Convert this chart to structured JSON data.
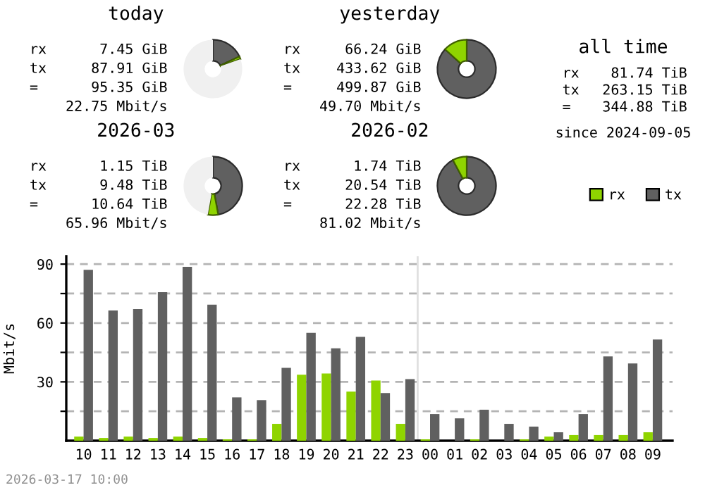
{
  "chart_data": [
    {
      "type": "donut",
      "title": "today",
      "categories": [
        null,
        null,
        null
      ],
      "values": [
        18.0,
        1.5,
        80.5
      ],
      "colors": [
        "#606060",
        "#8fd400",
        "#f0f0f0"
      ],
      "annotations": [
        "rx 7.45 GiB",
        "tx 87.91 GiB",
        "= 95.35 GiB",
        "22.75 Mbit/s"
      ]
    },
    {
      "type": "donut",
      "title": "yesterday",
      "categories": [
        null,
        null
      ],
      "values": [
        86.75,
        13.25
      ],
      "colors": [
        "#606060",
        "#8fd400"
      ],
      "annotations": [
        "rx 66.24 GiB",
        "tx 433.62 GiB",
        "= 499.87 GiB",
        "49.70 Mbit/s"
      ]
    },
    {
      "type": "other",
      "title": "all time",
      "annotations": [
        "rx 81.74 TiB",
        "tx 263.15 TiB",
        "= 344.88 TiB",
        "since 2024-09-05"
      ]
    },
    {
      "type": "donut",
      "title": "2026-03",
      "categories": [
        null,
        null,
        null
      ],
      "values": [
        47.1,
        5.7,
        47.2
      ],
      "colors": [
        "#606060",
        "#8fd400",
        "#f0f0f0"
      ],
      "annotations": [
        "rx 1.15 TiB",
        "tx 9.48 TiB",
        "= 10.64 TiB",
        "65.96 Mbit/s"
      ]
    },
    {
      "type": "donut",
      "title": "2026-02",
      "categories": [
        null,
        null
      ],
      "values": [
        92.19,
        7.81
      ],
      "colors": [
        "#606060",
        "#8fd400"
      ],
      "annotations": [
        "rx 1.74 TiB",
        "tx 20.54 TiB",
        "= 22.28 TiB",
        "81.02 Mbit/s"
      ]
    },
    {
      "type": "bar",
      "ylabel": "Mbit/s",
      "categories": [
        "10",
        "11",
        "12",
        "13",
        "14",
        "15",
        "16",
        "17",
        "18",
        "19",
        "20",
        "21",
        "22",
        "23",
        "00",
        "01",
        "02",
        "03",
        "04",
        "05",
        "06",
        "07",
        "08",
        "09"
      ],
      "series": [
        {
          "name": "rx",
          "color": "#8fd400",
          "values": [
            2.1,
            1.4,
            2.1,
            1.4,
            2.1,
            1.4,
            0.7,
            0.7,
            8.6,
            33.6,
            34.3,
            25.0,
            30.7,
            8.6,
            0.7,
            0,
            0.7,
            0,
            0.7,
            2.1,
            2.9,
            2.9,
            2.9,
            4.3
          ]
        },
        {
          "name": "tx",
          "color": "#606060",
          "values": [
            87.1,
            66.4,
            67.1,
            75.7,
            88.6,
            69.3,
            22.1,
            20.7,
            37.1,
            55.0,
            47.1,
            52.9,
            24.3,
            31.4,
            13.6,
            11.4,
            15.8,
            8.6,
            7.2,
            4.3,
            13.6,
            43.0,
            39.4,
            51.6
          ]
        }
      ],
      "ylim": [
        0,
        94
      ],
      "yticks": [
        {
          "value": 15,
          "label": null
        },
        30,
        {
          "value": 45,
          "label": null
        },
        60,
        {
          "value": 75,
          "label": null
        },
        90
      ],
      "grid": "y",
      "line_style": "dashed",
      "legend": "top right",
      "ref_lines": [
        {
          "axis": "x",
          "value": "00",
          "color": "#e0e0e0"
        }
      ],
      "annotations": [
        "2026-03-17 10:00"
      ]
    }
  ]
}
